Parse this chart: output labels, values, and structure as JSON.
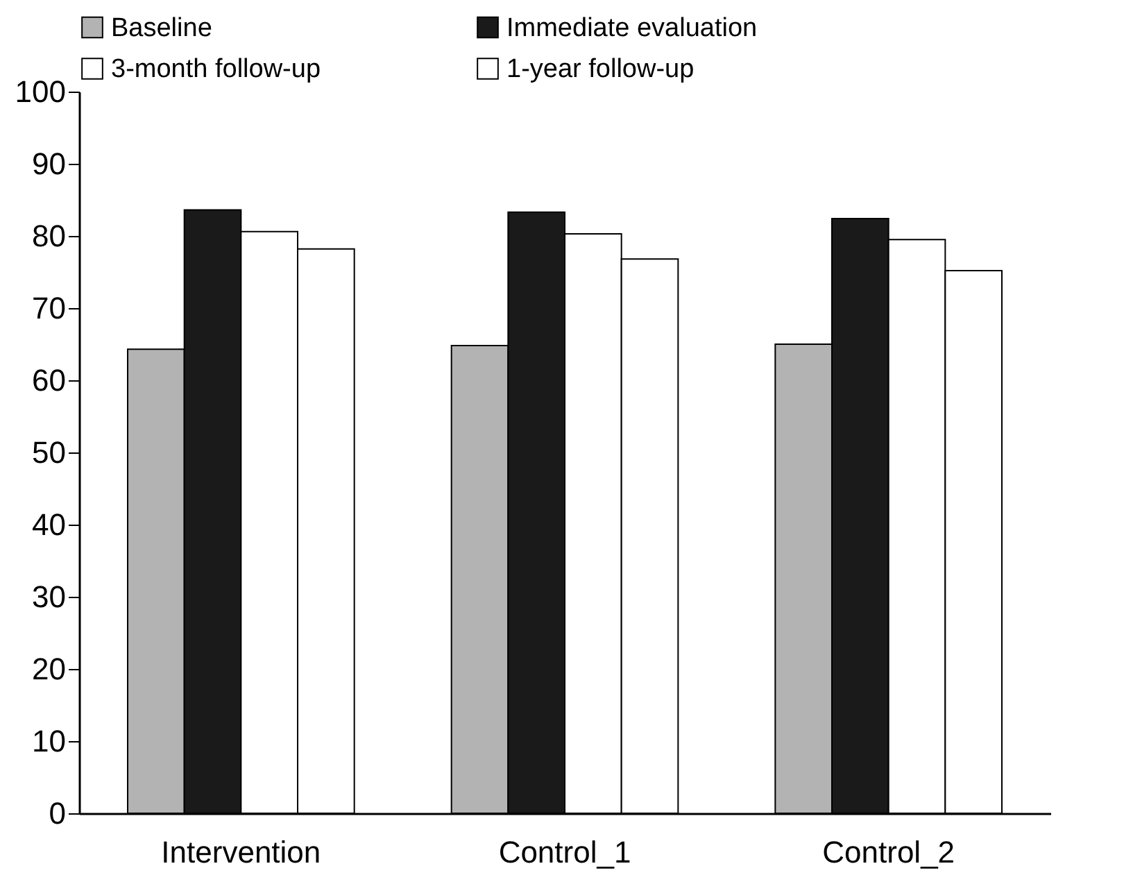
{
  "chart_data": {
    "type": "bar",
    "categories": [
      "Intervention",
      "Control_1",
      "Control_2"
    ],
    "series": [
      {
        "name": "Baseline",
        "color": "#b3b3b3",
        "values": [
          64.3,
          64.8,
          65.0
        ]
      },
      {
        "name": "Immediate evaluation",
        "color": "#1a1a1a",
        "values": [
          83.6,
          83.3,
          82.4
        ]
      },
      {
        "name": "3-month follow-up",
        "color": "#ffffff",
        "values": [
          80.6,
          80.3,
          79.5
        ]
      },
      {
        "name": "1-year follow-up",
        "color": "#ffffff",
        "values": [
          78.2,
          76.8,
          75.2
        ]
      }
    ],
    "ylim": [
      0,
      100
    ],
    "yticks": [
      0,
      10,
      20,
      30,
      40,
      50,
      60,
      70,
      80,
      90,
      100
    ],
    "grid": false,
    "legend": "top"
  }
}
